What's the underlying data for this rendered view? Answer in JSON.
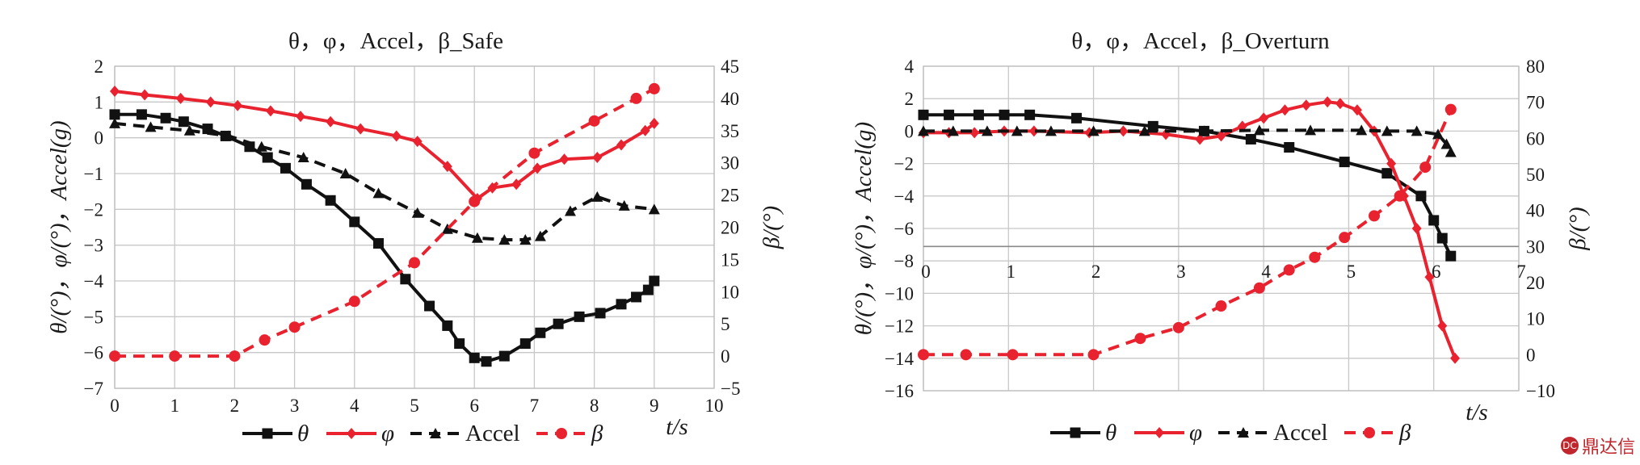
{
  "chart_data": [
    {
      "type": "line",
      "title": "θ，φ，Accel，β_Safe",
      "xlabel": "t/s",
      "ylabel": "θ/(°)，φ/(°)，Accel(g)",
      "y2label": "β/(°)",
      "xlim": [
        0,
        10
      ],
      "ylim": [
        -7,
        2
      ],
      "y2lim": [
        -5,
        45
      ],
      "x_ticks": [
        0,
        1,
        2,
        3,
        4,
        5,
        6,
        7,
        8,
        9,
        10
      ],
      "y_ticks": [
        -7,
        -6,
        -5,
        -4,
        -3,
        -2,
        -1,
        0,
        1,
        2
      ],
      "y2_ticks": [
        -5,
        0,
        5,
        10,
        15,
        20,
        25,
        30,
        35,
        40,
        45
      ],
      "grid": true,
      "legend_position": "bottom",
      "series": [
        {
          "name": "θ",
          "axis": "left",
          "color": "#111111",
          "dash": "solid",
          "marker": "square",
          "x": [
            0,
            0.45,
            0.85,
            1.15,
            1.55,
            1.85,
            2.25,
            2.55,
            2.85,
            3.2,
            3.6,
            4,
            4.4,
            4.85,
            5.25,
            5.55,
            5.75,
            6,
            6.2,
            6.5,
            6.85,
            7.1,
            7.4,
            7.75,
            8.1,
            8.45,
            8.7,
            8.9,
            9
          ],
          "y": [
            0.65,
            0.65,
            0.55,
            0.45,
            0.25,
            0.05,
            -0.25,
            -0.55,
            -0.85,
            -1.3,
            -1.75,
            -2.35,
            -2.95,
            -3.95,
            -4.7,
            -5.25,
            -5.75,
            -6.15,
            -6.25,
            -6.1,
            -5.75,
            -5.45,
            -5.2,
            -5.0,
            -4.9,
            -4.65,
            -4.45,
            -4.25,
            -4.0
          ]
        },
        {
          "name": "φ",
          "axis": "left",
          "color": "#e8232f",
          "dash": "solid",
          "marker": "diamond",
          "x": [
            0,
            0.5,
            1.1,
            1.6,
            2.05,
            2.6,
            3.1,
            3.6,
            4.1,
            4.7,
            5.05,
            5.55,
            6.05,
            6.3,
            6.7,
            7.05,
            7.5,
            8.05,
            8.45,
            8.85,
            9
          ],
          "y": [
            1.3,
            1.2,
            1.1,
            1.0,
            0.9,
            0.75,
            0.6,
            0.45,
            0.25,
            0.05,
            -0.1,
            -0.8,
            -1.7,
            -1.4,
            -1.3,
            -0.85,
            -0.6,
            -0.55,
            -0.2,
            0.2,
            0.4
          ]
        },
        {
          "name": "Accel",
          "axis": "left",
          "color": "#111111",
          "dash": "dashed",
          "marker": "triangle",
          "x": [
            0,
            0.6,
            1.25,
            1.9,
            2.45,
            3.15,
            3.85,
            4.4,
            5.05,
            5.55,
            6.05,
            6.5,
            6.85,
            7.1,
            7.6,
            8.05,
            8.5,
            9
          ],
          "y": [
            0.4,
            0.3,
            0.2,
            0.05,
            -0.25,
            -0.55,
            -1.0,
            -1.55,
            -2.1,
            -2.55,
            -2.8,
            -2.85,
            -2.85,
            -2.75,
            -2.05,
            -1.65,
            -1.9,
            -2.0
          ]
        },
        {
          "name": "β",
          "axis": "right",
          "color": "#e8232f",
          "dash": "dashed",
          "marker": "circle",
          "x": [
            0,
            1,
            2,
            2.5,
            3,
            4,
            5,
            6,
            7,
            8,
            8.7,
            9
          ],
          "y": [
            0,
            0,
            0,
            2.5,
            4.5,
            8.5,
            14.5,
            24,
            31.5,
            36.5,
            40,
            41.5
          ]
        }
      ]
    },
    {
      "type": "line",
      "title": "θ，φ，Accel，β_Overturn",
      "xlabel": "t/s",
      "ylabel": "θ/(°)，φ/(°)，Accel(g)",
      "y2label": "β/(°)",
      "xlim": [
        0,
        7
      ],
      "ylim": [
        -16,
        4
      ],
      "y2lim": [
        -10,
        80
      ],
      "x_ticks": [
        0,
        1,
        2,
        3,
        4,
        5,
        6,
        7
      ],
      "y_ticks": [
        -16,
        -14,
        -12,
        -10,
        -8,
        -6,
        -4,
        -2,
        0,
        2,
        4
      ],
      "y2_ticks": [
        -10,
        0,
        10,
        20,
        30,
        40,
        50,
        60,
        70,
        80
      ],
      "grid": true,
      "legend_position": "bottom",
      "series": [
        {
          "name": "θ",
          "axis": "left",
          "color": "#111111",
          "dash": "solid",
          "marker": "square",
          "x": [
            0,
            0.3,
            0.65,
            0.95,
            1.25,
            1.8,
            2.7,
            3.3,
            3.85,
            4.3,
            4.95,
            5.45,
            5.85,
            6.0,
            6.1,
            6.2
          ],
          "y": [
            1.0,
            1.0,
            1.0,
            1.0,
            1.0,
            0.8,
            0.3,
            0.0,
            -0.5,
            -1.0,
            -1.9,
            -2.6,
            -4.0,
            -5.5,
            -6.6,
            -7.7
          ]
        },
        {
          "name": "φ",
          "axis": "left",
          "color": "#e8232f",
          "dash": "solid",
          "marker": "diamond",
          "x": [
            0,
            0.3,
            0.6,
            0.95,
            1.3,
            1.95,
            2.35,
            2.85,
            3.25,
            3.5,
            3.75,
            4.0,
            4.25,
            4.5,
            4.75,
            4.9,
            5.1,
            5.3,
            5.5,
            5.65,
            5.8,
            5.95,
            6.1,
            6.25
          ],
          "y": [
            -0.1,
            -0.1,
            -0.1,
            0.0,
            0.0,
            -0.1,
            0.0,
            -0.2,
            -0.5,
            -0.3,
            0.3,
            0.8,
            1.3,
            1.6,
            1.8,
            1.7,
            1.3,
            0.0,
            -2.0,
            -4.0,
            -6.0,
            -9.0,
            -12.0,
            -14.0
          ]
        },
        {
          "name": "Accel",
          "axis": "left",
          "color": "#111111",
          "dash": "dashed",
          "marker": "triangle",
          "x": [
            0,
            0.35,
            0.75,
            1.1,
            1.5,
            2.0,
            2.6,
            3.3,
            3.95,
            4.55,
            5.15,
            5.45,
            5.8,
            6.05,
            6.15,
            6.2
          ],
          "y": [
            0.0,
            0.0,
            0.0,
            0.0,
            0.0,
            0.0,
            0.0,
            0.0,
            0.05,
            0.05,
            0.05,
            0.0,
            0.0,
            -0.2,
            -0.8,
            -1.3
          ]
        },
        {
          "name": "β",
          "axis": "right",
          "color": "#e8232f",
          "dash": "dashed",
          "marker": "circle",
          "x": [
            0,
            0.5,
            1.05,
            2.0,
            2.55,
            3.0,
            3.5,
            3.95,
            4.3,
            4.6,
            4.95,
            5.3,
            5.6,
            5.9,
            6.2
          ],
          "y": [
            0,
            0,
            0,
            0,
            4.5,
            7.5,
            13.5,
            18.5,
            23.5,
            27,
            32.5,
            38.5,
            44,
            52,
            68
          ]
        }
      ]
    }
  ],
  "watermark": {
    "logo": "DC",
    "text": "鼎达信"
  }
}
